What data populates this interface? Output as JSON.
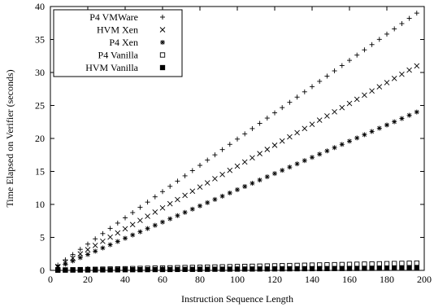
{
  "chart_data": {
    "type": "scatter",
    "title": "",
    "xlabel": "Instruction Sequence Length",
    "ylabel": "Time Elapsed on Verifier (seconds)",
    "xlim": [
      0,
      200
    ],
    "ylim": [
      0,
      40
    ],
    "xticks": [
      0,
      20,
      40,
      60,
      80,
      100,
      120,
      140,
      160,
      180,
      200
    ],
    "yticks": [
      0,
      5,
      10,
      15,
      20,
      25,
      30,
      35,
      40
    ],
    "grid": false,
    "legend_position": "top-left",
    "x_range": [
      4,
      196
    ],
    "x_step": 4,
    "series": [
      {
        "name": "P4 VMWare",
        "marker": "plus",
        "start_y": 0.8,
        "end_y": 39.0
      },
      {
        "name": "HVM Xen",
        "marker": "cross",
        "start_y": 0.6,
        "end_y": 31.0
      },
      {
        "name": "P4 Xen",
        "marker": "star",
        "start_y": 0.45,
        "end_y": 24.0
      },
      {
        "name": "P4 Vanilla",
        "marker": "open-square",
        "start_y": 0.05,
        "end_y": 1.1
      },
      {
        "name": "HVM Vanilla",
        "marker": "filled-square",
        "start_y": 0.03,
        "end_y": 0.35
      }
    ]
  }
}
